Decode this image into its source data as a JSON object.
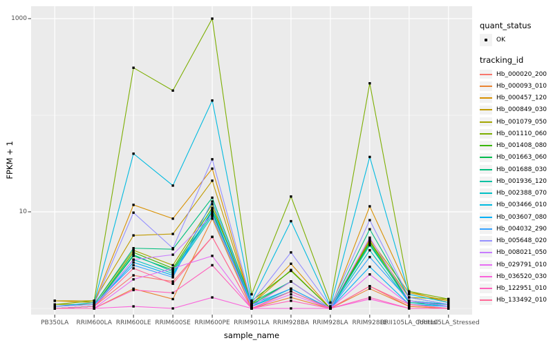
{
  "chart_data": {
    "type": "line",
    "xlabel": "sample_name",
    "ylabel": "FPKM + 1",
    "y_scale": "log10",
    "y_ticks": [
      10,
      1000
    ],
    "y_tick_labels": [
      "10",
      "1000"
    ],
    "y_minor_gridlines": [
      1,
      100
    ],
    "grid": "on",
    "legend_position": "right",
    "categories": [
      "PB350LA",
      "RRIM600LA",
      "RRIM600LE",
      "RRIM600SE",
      "RRIM600PE",
      "RRIM901LA",
      "RRIM928BA",
      "RRIM928LA",
      "RRIM928LE",
      "RRII105LA_Control",
      "RRII105LA_Stressed"
    ],
    "series": [
      {
        "name": "Hb_000020_200",
        "color": "#F8766D",
        "values": [
          1.0,
          1.05,
          2.2,
          1.9,
          5.5,
          1.0,
          1.5,
          1.0,
          1.7,
          1.05,
          1.0
        ]
      },
      {
        "name": "Hb_000093_010",
        "color": "#EA8331",
        "values": [
          1.0,
          1.0,
          1.6,
          1.25,
          8.5,
          1.0,
          1.3,
          1.0,
          1.6,
          1.05,
          1.0
        ]
      },
      {
        "name": "Hb_000457_120",
        "color": "#D89000",
        "values": [
          1.2,
          1.15,
          11.8,
          8.5,
          28,
          1.1,
          2.9,
          1.0,
          11.4,
          1.5,
          1.15
        ]
      },
      {
        "name": "Hb_000849_030",
        "color": "#C09B00",
        "values": [
          1.2,
          1.2,
          5.7,
          5.9,
          21,
          1.1,
          2.5,
          1.0,
          5.2,
          1.45,
          1.2
        ]
      },
      {
        "name": "Hb_001079_050",
        "color": "#A3A500",
        "values": [
          1.1,
          1.1,
          4.0,
          2.8,
          12,
          1.05,
          1.9,
          1.0,
          5.0,
          1.3,
          1.25
        ]
      },
      {
        "name": "Hb_001110_060",
        "color": "#7CAE00",
        "values": [
          1.1,
          1.2,
          310,
          180,
          1000,
          1.4,
          14.4,
          1.15,
          214,
          1.5,
          1.25
        ]
      },
      {
        "name": "Hb_001408_080",
        "color": "#39B600",
        "values": [
          1.0,
          1.05,
          3.8,
          2.6,
          11,
          1.2,
          2.45,
          1.0,
          4.9,
          1.2,
          1.1
        ]
      },
      {
        "name": "Hb_001663_060",
        "color": "#00BB4E",
        "values": [
          1.0,
          1.05,
          3.5,
          2.5,
          10,
          1.1,
          1.9,
          1.0,
          4.7,
          1.15,
          1.1
        ]
      },
      {
        "name": "Hb_001688_030",
        "color": "#00BF7D",
        "values": [
          1.05,
          1.1,
          4.2,
          4.1,
          14,
          1.15,
          1.9,
          1.0,
          6.6,
          1.3,
          1.1
        ]
      },
      {
        "name": "Hb_001936_120",
        "color": "#00C1A3",
        "values": [
          1.0,
          1.05,
          3.6,
          2.4,
          9.5,
          1.1,
          1.6,
          1.0,
          4.5,
          1.2,
          1.05
        ]
      },
      {
        "name": "Hb_002388_070",
        "color": "#00BFC4",
        "values": [
          1.0,
          1.05,
          3.2,
          2.3,
          9.0,
          1.05,
          1.6,
          1.0,
          4.0,
          1.15,
          1.05
        ]
      },
      {
        "name": "Hb_003466_010",
        "color": "#00BAE0",
        "values": [
          1.05,
          1.15,
          40,
          18.7,
          142,
          1.2,
          8.0,
          1.05,
          37,
          1.4,
          1.15
        ]
      },
      {
        "name": "Hb_003607_080",
        "color": "#00B0F6",
        "values": [
          1.0,
          1.05,
          3.0,
          2.2,
          10.5,
          1.05,
          1.5,
          1.0,
          2.7,
          1.1,
          1.05
        ]
      },
      {
        "name": "Hb_004032_290",
        "color": "#35A2FF",
        "values": [
          1.05,
          1.1,
          2.8,
          2.1,
          12.8,
          1.1,
          1.6,
          1.0,
          3.4,
          1.2,
          1.1
        ]
      },
      {
        "name": "Hb_005648_020",
        "color": "#9590FF",
        "values": [
          1.05,
          1.1,
          9.8,
          4.2,
          35,
          1.15,
          3.8,
          1.05,
          8.2,
          1.3,
          1.1
        ]
      },
      {
        "name": "Hb_008021_050",
        "color": "#C77CFF",
        "values": [
          1.0,
          1.05,
          3.2,
          3.6,
          9.3,
          1.05,
          1.9,
          1.0,
          5.4,
          1.2,
          1.05
        ]
      },
      {
        "name": "Hb_029791_010",
        "color": "#E76BF3",
        "values": [
          1.0,
          1.0,
          2.0,
          2.6,
          3.5,
          1.0,
          1.4,
          1.0,
          2.25,
          1.1,
          1.0
        ]
      },
      {
        "name": "Hb_036520_030",
        "color": "#FA62DB",
        "values": [
          1.0,
          1.0,
          1.05,
          1.0,
          1.3,
          1.0,
          1.0,
          1.0,
          1.25,
          1.0,
          1.0
        ]
      },
      {
        "name": "Hb_122951_010",
        "color": "#FF62BC",
        "values": [
          1.0,
          1.0,
          1.55,
          1.45,
          2.8,
          1.0,
          1.2,
          1.0,
          1.3,
          1.0,
          1.0
        ]
      },
      {
        "name": "Hb_133492_010",
        "color": "#FF6A98",
        "values": [
          1.0,
          1.05,
          2.6,
          1.8,
          5.5,
          1.0,
          1.5,
          1.0,
          1.7,
          1.1,
          1.0
        ]
      }
    ]
  },
  "legend": {
    "quant_status_title": "quant_status",
    "quant_status_items": [
      "OK"
    ],
    "tracking_id_title": "tracking_id"
  },
  "colors": {
    "panel_bg": "#EBEBEB",
    "grid": "#FFFFFF",
    "tick_mark": "#333333",
    "tick_text": "#4D4D4D",
    "legend_key_bg": "#F2F2F2",
    "point": "#000000"
  }
}
